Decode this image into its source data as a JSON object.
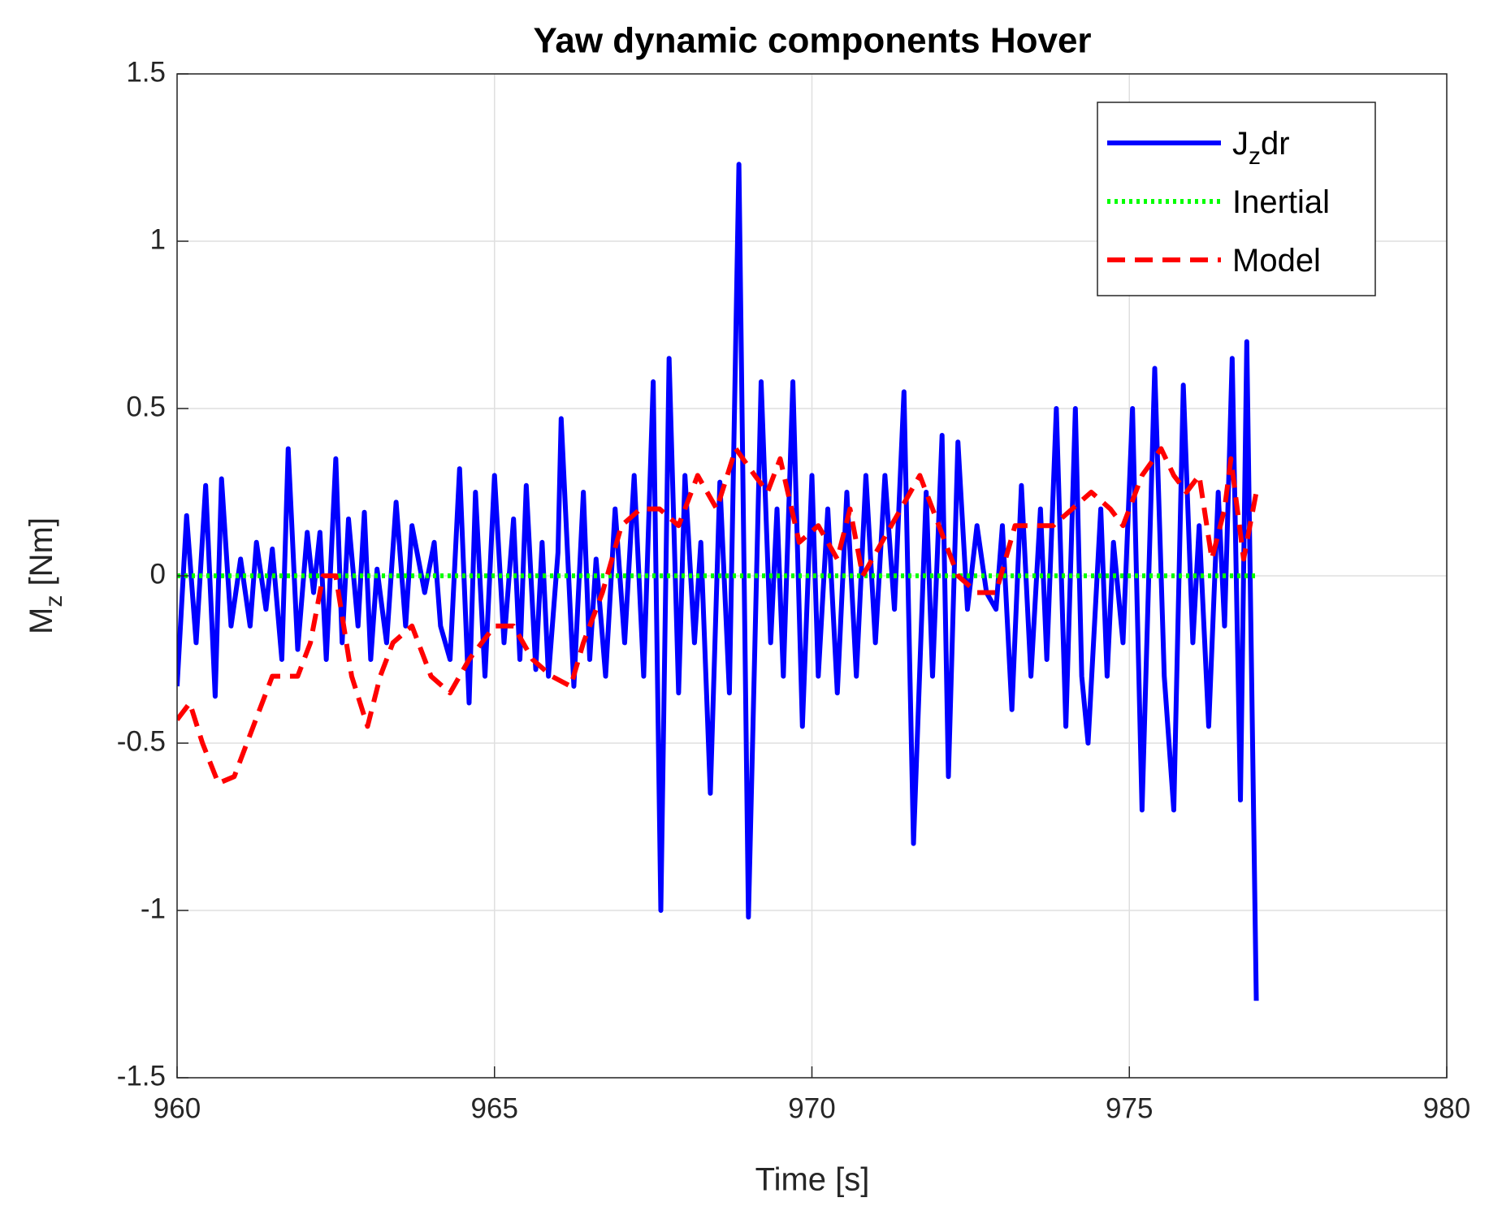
{
  "chart_data": {
    "type": "line",
    "title": "Yaw dynamic components Hover",
    "xlabel": "Time [s]",
    "ylabel": {
      "text": "M",
      "sub": "z",
      "rest": " [Nm]"
    },
    "xlim": [
      960,
      980
    ],
    "ylim": [
      -1.5,
      1.5
    ],
    "xticks": [
      960,
      965,
      970,
      975,
      980
    ],
    "yticks": [
      -1.5,
      -1,
      -0.5,
      0,
      0.5,
      1,
      1.5
    ],
    "grid": true,
    "legend": "northeast",
    "series": [
      {
        "name": {
          "text": "J",
          "sub": "z",
          "rest": "dr"
        },
        "color": "#0000ff",
        "linestyle": "solid",
        "x": [
          960.0,
          960.15,
          960.3,
          960.45,
          960.6,
          960.7,
          960.85,
          961.0,
          961.15,
          961.25,
          961.4,
          961.5,
          961.65,
          961.75,
          961.9,
          962.05,
          962.15,
          962.25,
          962.35,
          962.5,
          962.6,
          962.7,
          962.85,
          962.95,
          963.05,
          963.15,
          963.3,
          963.45,
          963.6,
          963.7,
          963.9,
          964.05,
          964.15,
          964.3,
          964.45,
          964.6,
          964.7,
          964.85,
          965.0,
          965.15,
          965.3,
          965.4,
          965.5,
          965.65,
          965.75,
          965.85,
          966.0,
          966.05,
          966.25,
          966.4,
          966.5,
          966.6,
          966.75,
          966.9,
          967.05,
          967.2,
          967.35,
          967.5,
          967.62,
          967.75,
          967.9,
          968.0,
          968.15,
          968.25,
          968.4,
          968.55,
          968.7,
          968.85,
          969.0,
          969.2,
          969.35,
          969.45,
          969.55,
          969.7,
          969.85,
          970.0,
          970.1,
          970.25,
          970.4,
          970.55,
          970.7,
          970.85,
          971.0,
          971.15,
          971.3,
          971.45,
          971.6,
          971.8,
          971.9,
          972.05,
          972.15,
          972.3,
          972.45,
          972.6,
          972.75,
          972.9,
          973.0,
          973.15,
          973.3,
          973.45,
          973.6,
          973.7,
          973.85,
          974.0,
          974.15,
          974.25,
          974.35,
          974.55,
          974.65,
          974.75,
          974.9,
          975.05,
          975.2,
          975.4,
          975.55,
          975.7,
          975.85,
          976.0,
          976.1,
          976.25,
          976.4,
          976.5,
          976.62,
          976.75,
          976.85,
          977.0
        ],
        "values": [
          -0.33,
          0.18,
          -0.2,
          0.27,
          -0.36,
          0.29,
          -0.15,
          0.05,
          -0.15,
          0.1,
          -0.1,
          0.08,
          -0.25,
          0.38,
          -0.22,
          0.13,
          -0.05,
          0.13,
          -0.25,
          0.35,
          -0.2,
          0.17,
          -0.15,
          0.19,
          -0.25,
          0.02,
          -0.2,
          0.22,
          -0.15,
          0.15,
          -0.05,
          0.1,
          -0.15,
          -0.25,
          0.32,
          -0.38,
          0.25,
          -0.3,
          0.3,
          -0.2,
          0.17,
          -0.25,
          0.27,
          -0.28,
          0.1,
          -0.3,
          0.07,
          0.47,
          -0.33,
          0.25,
          -0.25,
          0.05,
          -0.3,
          0.2,
          -0.2,
          0.3,
          -0.3,
          0.58,
          -1.0,
          0.65,
          -0.35,
          0.3,
          -0.2,
          0.1,
          -0.65,
          0.28,
          -0.35,
          1.23,
          -1.02,
          0.58,
          -0.2,
          0.2,
          -0.3,
          0.58,
          -0.45,
          0.3,
          -0.3,
          0.2,
          -0.35,
          0.25,
          -0.3,
          0.3,
          -0.2,
          0.3,
          -0.1,
          0.55,
          -0.8,
          0.25,
          -0.3,
          0.42,
          -0.6,
          0.4,
          -0.1,
          0.15,
          -0.05,
          -0.1,
          0.15,
          -0.4,
          0.27,
          -0.3,
          0.2,
          -0.25,
          0.5,
          -0.45,
          0.5,
          -0.3,
          -0.5,
          0.2,
          -0.3,
          0.1,
          -0.2,
          0.5,
          -0.7,
          0.62,
          -0.3,
          -0.7,
          0.57,
          -0.2,
          0.15,
          -0.45,
          0.25,
          -0.15,
          0.65,
          -0.67,
          0.7,
          -1.27
        ]
      },
      {
        "name": "Inertial",
        "color": "#00ff00",
        "linestyle": "dotted",
        "x": [
          960,
          977
        ],
        "values": [
          0,
          0
        ]
      },
      {
        "name": "Model",
        "color": "#ff0000",
        "linestyle": "dashed",
        "x": [
          960.0,
          960.2,
          960.4,
          960.65,
          960.9,
          961.1,
          961.3,
          961.5,
          961.7,
          961.9,
          962.1,
          962.3,
          962.5,
          962.75,
          963.0,
          963.2,
          963.4,
          963.7,
          964.0,
          964.3,
          964.6,
          965.0,
          965.3,
          965.6,
          965.9,
          966.2,
          966.4,
          966.7,
          967.0,
          967.3,
          967.6,
          967.9,
          968.2,
          968.5,
          968.8,
          969.1,
          969.3,
          969.5,
          969.8,
          970.1,
          970.4,
          970.6,
          970.8,
          971.1,
          971.4,
          971.7,
          972.0,
          972.3,
          972.6,
          972.9,
          973.2,
          973.5,
          973.8,
          974.1,
          974.4,
          974.7,
          974.9,
          975.2,
          975.5,
          975.7,
          975.9,
          976.1,
          976.3,
          976.5,
          976.6,
          976.8,
          977.0
        ],
        "values": [
          -0.43,
          -0.38,
          -0.5,
          -0.62,
          -0.6,
          -0.5,
          -0.4,
          -0.3,
          -0.3,
          -0.3,
          -0.2,
          0.0,
          0.0,
          -0.3,
          -0.45,
          -0.3,
          -0.2,
          -0.15,
          -0.3,
          -0.35,
          -0.25,
          -0.15,
          -0.15,
          -0.25,
          -0.3,
          -0.33,
          -0.2,
          -0.05,
          0.15,
          0.2,
          0.2,
          0.15,
          0.3,
          0.2,
          0.38,
          0.3,
          0.25,
          0.35,
          0.1,
          0.15,
          0.05,
          0.2,
          0.0,
          0.1,
          0.2,
          0.3,
          0.15,
          0.0,
          -0.05,
          -0.05,
          0.15,
          0.15,
          0.15,
          0.2,
          0.25,
          0.2,
          0.15,
          0.3,
          0.38,
          0.3,
          0.25,
          0.3,
          0.05,
          0.2,
          0.35,
          0.05,
          0.25
        ]
      }
    ]
  }
}
